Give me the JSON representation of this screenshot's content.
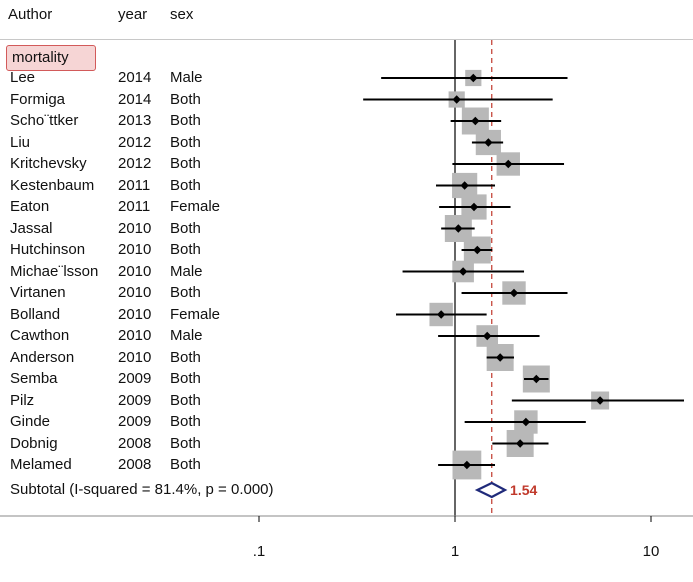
{
  "headers": {
    "author": "Author",
    "year": "year",
    "sex": "sex"
  },
  "group_label": "mortality",
  "subtotal_text": "Subtotal  (I-squared = 81.4%, p = 0.000)",
  "colors": {
    "point": "#000000",
    "box": "#b8b8b8",
    "diamond": "#1f2a7a",
    "ref_line": "#c0392b",
    "summary_value": "#c0392b",
    "group_box_fill": "#f6d5d5"
  },
  "chart_data": {
    "type": "forest",
    "x_scale": "log",
    "xlim": [
      0.02,
      15
    ],
    "x_ticks": [
      {
        "value": 0.1,
        "label": ".1"
      },
      {
        "value": 1,
        "label": "1"
      },
      {
        "value": 10,
        "label": "10"
      }
    ],
    "null_line": 1,
    "pooled": {
      "estimate": 1.54,
      "lower": 1.3,
      "upper": 1.8,
      "label": "1.54"
    },
    "studies": [
      {
        "author": "Lee",
        "year": "2014",
        "sex": "Male",
        "est": 1.24,
        "lo": 0.42,
        "hi": 3.75,
        "weight": 0.9
      },
      {
        "author": "Formiga",
        "year": "2014",
        "sex": "Both",
        "est": 1.02,
        "lo": 0.34,
        "hi": 3.15,
        "weight": 0.9
      },
      {
        "author": "Scho¨ttker",
        "year": "2013",
        "sex": "Both",
        "est": 1.27,
        "lo": 0.95,
        "hi": 1.72,
        "weight": 1.5
      },
      {
        "author": "Liu",
        "year": "2012",
        "sex": "Both",
        "est": 1.48,
        "lo": 1.22,
        "hi": 1.76,
        "weight": 1.4
      },
      {
        "author": "Kritchevsky",
        "year": "2012",
        "sex": "Both",
        "est": 1.87,
        "lo": 0.97,
        "hi": 3.6,
        "weight": 1.3
      },
      {
        "author": "Kestenbaum",
        "year": "2011",
        "sex": "Both",
        "est": 1.12,
        "lo": 0.8,
        "hi": 1.6,
        "weight": 1.4
      },
      {
        "author": "Eaton",
        "year": "2011",
        "sex": "Female",
        "est": 1.25,
        "lo": 0.83,
        "hi": 1.92,
        "weight": 1.4
      },
      {
        "author": "Jassal",
        "year": "2010",
        "sex": "Both",
        "est": 1.04,
        "lo": 0.85,
        "hi": 1.26,
        "weight": 1.5
      },
      {
        "author": "Hutchinson",
        "year": "2010",
        "sex": "Both",
        "est": 1.3,
        "lo": 1.08,
        "hi": 1.55,
        "weight": 1.5
      },
      {
        "author": "Michae¨lsson",
        "year": "2010",
        "sex": "Male",
        "est": 1.1,
        "lo": 0.54,
        "hi": 2.25,
        "weight": 1.2
      },
      {
        "author": "Virtanen",
        "year": "2010",
        "sex": "Both",
        "est": 2.0,
        "lo": 1.08,
        "hi": 3.75,
        "weight": 1.3
      },
      {
        "author": "Bolland",
        "year": "2010",
        "sex": "Female",
        "est": 0.85,
        "lo": 0.5,
        "hi": 1.45,
        "weight": 1.3
      },
      {
        "author": "Cawthon",
        "year": "2010",
        "sex": "Male",
        "est": 1.46,
        "lo": 0.82,
        "hi": 2.7,
        "weight": 1.2
      },
      {
        "author": "Anderson",
        "year": "2010",
        "sex": "Both",
        "est": 1.7,
        "lo": 1.45,
        "hi": 2.0,
        "weight": 1.5
      },
      {
        "author": "Semba",
        "year": "2009",
        "sex": "Both",
        "est": 2.6,
        "lo": 2.25,
        "hi": 3.0,
        "weight": 1.5
      },
      {
        "author": "Pilz",
        "year": "2009",
        "sex": "Both",
        "est": 5.5,
        "lo": 1.95,
        "hi": 15.0,
        "weight": 1.0
      },
      {
        "author": "Ginde",
        "year": "2009",
        "sex": "Both",
        "est": 2.3,
        "lo": 1.12,
        "hi": 4.65,
        "weight": 1.3
      },
      {
        "author": "Dobnig",
        "year": "2008",
        "sex": "Both",
        "est": 2.15,
        "lo": 1.55,
        "hi": 3.0,
        "weight": 1.5
      },
      {
        "author": "Melamed",
        "year": "2008",
        "sex": "Both",
        "est": 1.15,
        "lo": 0.82,
        "hi": 1.6,
        "weight": 1.6
      }
    ]
  }
}
